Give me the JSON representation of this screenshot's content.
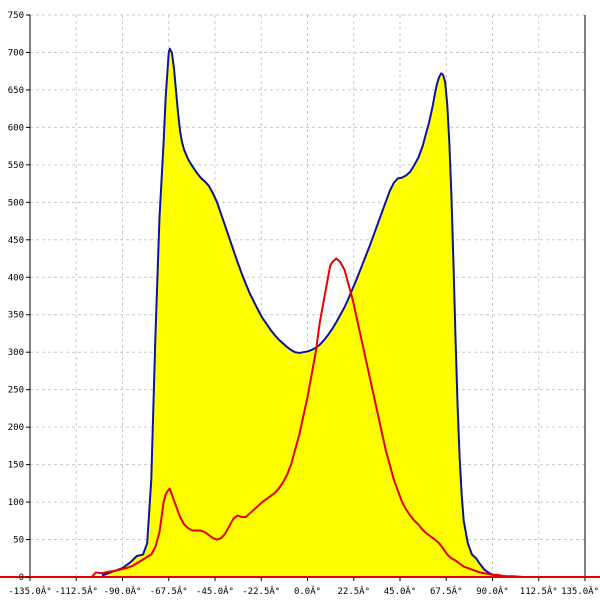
{
  "chart_data": {
    "type": "area",
    "title": "",
    "xlabel": "",
    "ylabel": "",
    "xlim": [
      -135,
      135
    ],
    "ylim": [
      0,
      750
    ],
    "grid": true,
    "x_ticks": [
      -135,
      -112.5,
      -90,
      -67.5,
      -45,
      -22.5,
      0,
      22.5,
      45,
      67.5,
      90,
      112.5,
      135
    ],
    "x_tick_labels": [
      "-135.0Â°",
      "-112.5Â°",
      "-90.0Â°",
      "-67.5Â°",
      "-45.0Â°",
      "-22.5Â°",
      "0.0Â°",
      "22.5Â°",
      "45.0Â°",
      "67.5Â°",
      "90.0Â°",
      "112.5Â°",
      "135.0Â°"
    ],
    "y_ticks": [
      0,
      50,
      100,
      150,
      200,
      250,
      300,
      350,
      400,
      450,
      500,
      550,
      600,
      650,
      700,
      750
    ],
    "y_tick_labels": [
      "0",
      "50",
      "100",
      "150",
      "200",
      "250",
      "300",
      "350",
      "400",
      "450",
      "500",
      "550",
      "600",
      "650",
      "700",
      "750"
    ],
    "series": [
      {
        "color": "#0a14a0",
        "fill": "#ffff00",
        "x": [
          -100,
          -97,
          -94,
          -90,
          -86,
          -83,
          -80,
          -78,
          -76,
          -74,
          -72,
          -70,
          -69,
          -68,
          -67.5,
          -67,
          -66,
          -65,
          -64,
          -63,
          -62,
          -61,
          -60,
          -58,
          -56,
          -54,
          -52,
          -50,
          -48,
          -46,
          -44,
          -42,
          -40,
          -38,
          -36,
          -34,
          -32,
          -30,
          -28,
          -26,
          -24,
          -22,
          -20,
          -18,
          -16,
          -14,
          -12,
          -10,
          -8,
          -6,
          -4,
          -2,
          0,
          2,
          4,
          6,
          8,
          10,
          12,
          14,
          16,
          18,
          20,
          22,
          24,
          26,
          28,
          30,
          32,
          34,
          36,
          38,
          40,
          42,
          44,
          46,
          48,
          50,
          52,
          54,
          56,
          58,
          59,
          60,
          61,
          62,
          63,
          64,
          65,
          66,
          67,
          68,
          69,
          70,
          71,
          72,
          73,
          74,
          75,
          76,
          78,
          80,
          82,
          84,
          86,
          88,
          90,
          92,
          94,
          96,
          98,
          100
        ],
        "y": [
          2,
          5,
          8,
          12,
          20,
          28,
          30,
          45,
          130,
          320,
          480,
          580,
          640,
          680,
          700,
          705,
          700,
          680,
          650,
          620,
          595,
          580,
          570,
          557,
          548,
          540,
          533,
          528,
          522,
          512,
          500,
          484,
          468,
          452,
          436,
          420,
          405,
          391,
          378,
          367,
          356,
          346,
          338,
          330,
          323,
          317,
          312,
          307,
          303,
          300,
          299,
          300,
          301,
          303,
          306,
          310,
          316,
          323,
          331,
          340,
          350,
          360,
          372,
          385,
          398,
          412,
          426,
          440,
          455,
          470,
          485,
          500,
          515,
          526,
          532,
          533,
          536,
          541,
          550,
          560,
          575,
          595,
          605,
          617,
          630,
          645,
          658,
          667,
          672,
          670,
          660,
          630,
          580,
          510,
          420,
          320,
          230,
          160,
          110,
          75,
          45,
          30,
          25,
          17,
          10,
          6,
          3,
          2,
          1,
          1,
          0,
          0
        ]
      },
      {
        "color": "#e60000",
        "x": [
          -135,
          -105,
          -103,
          -100,
          -97,
          -94,
          -91,
          -88,
          -85,
          -82,
          -79,
          -76,
          -74,
          -72,
          -71,
          -70,
          -69,
          -68,
          -67,
          -66,
          -64,
          -62,
          -60,
          -58,
          -56,
          -54,
          -52,
          -50,
          -48,
          -46,
          -44,
          -42,
          -40,
          -38,
          -36,
          -34,
          -32,
          -30,
          -28,
          -26,
          -24,
          -22,
          -20,
          -18,
          -16,
          -14,
          -12,
          -10,
          -8,
          -6,
          -4,
          -2,
          0,
          2,
          4,
          6,
          8,
          10,
          11,
          12,
          14,
          16,
          18,
          20,
          22,
          24,
          26,
          28,
          30,
          32,
          34,
          36,
          38,
          40,
          42,
          44,
          46,
          48,
          50,
          52,
          54,
          56,
          58,
          60,
          62,
          64,
          66,
          68,
          70,
          72,
          74,
          76,
          78,
          80,
          82,
          84,
          86,
          88,
          90,
          92,
          94,
          96,
          98,
          100,
          105,
          135
        ],
        "y": [
          0,
          0,
          6,
          5,
          7,
          8,
          10,
          12,
          15,
          20,
          25,
          30,
          40,
          60,
          80,
          100,
          110,
          115,
          118,
          110,
          95,
          80,
          70,
          65,
          62,
          62,
          62,
          60,
          56,
          52,
          50,
          52,
          58,
          68,
          78,
          82,
          80,
          80,
          85,
          90,
          95,
          100,
          104,
          108,
          112,
          118,
          126,
          136,
          150,
          170,
          190,
          215,
          240,
          270,
          300,
          340,
          370,
          400,
          415,
          420,
          425,
          420,
          410,
          390,
          370,
          345,
          320,
          295,
          270,
          245,
          220,
          195,
          170,
          150,
          130,
          115,
          100,
          90,
          82,
          75,
          70,
          63,
          58,
          54,
          50,
          45,
          38,
          30,
          25,
          22,
          18,
          14,
          12,
          10,
          8,
          6,
          5,
          4,
          3,
          3,
          2,
          1,
          1,
          1,
          0,
          0
        ]
      }
    ]
  }
}
